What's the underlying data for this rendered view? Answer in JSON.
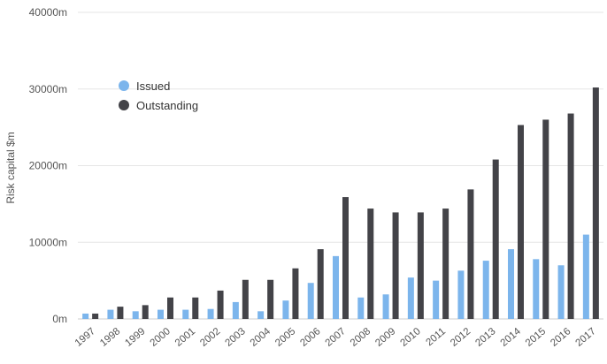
{
  "chart_data": {
    "type": "bar",
    "ylabel": "Risk capital $m",
    "ylim": [
      0,
      40000
    ],
    "yticks": [
      0,
      10000,
      20000,
      30000,
      40000
    ],
    "ytick_labels": [
      "0m",
      "10000m",
      "20000m",
      "30000m",
      "40000m"
    ],
    "grid": true,
    "legend_position": "top-left",
    "categories": [
      "1997",
      "1998",
      "1999",
      "2000",
      "2001",
      "2002",
      "2003",
      "2004",
      "2005",
      "2006",
      "2007",
      "2008",
      "2009",
      "2010",
      "2011",
      "2012",
      "2013",
      "2014",
      "2015",
      "2016",
      "2017"
    ],
    "series": [
      {
        "name": "Issued",
        "color": "#7cb5ec",
        "values": [
          700,
          1200,
          1000,
          1200,
          1200,
          1300,
          2200,
          1000,
          2400,
          4700,
          8200,
          2800,
          3200,
          5400,
          5000,
          6300,
          7600,
          9100,
          7800,
          7000,
          11000
        ]
      },
      {
        "name": "Outstanding",
        "color": "#434348",
        "values": [
          700,
          1600,
          1800,
          2800,
          2800,
          3700,
          5100,
          5100,
          6600,
          9100,
          15900,
          14400,
          13900,
          13900,
          14400,
          16900,
          20800,
          25300,
          26000,
          26800,
          30200
        ]
      }
    ]
  }
}
